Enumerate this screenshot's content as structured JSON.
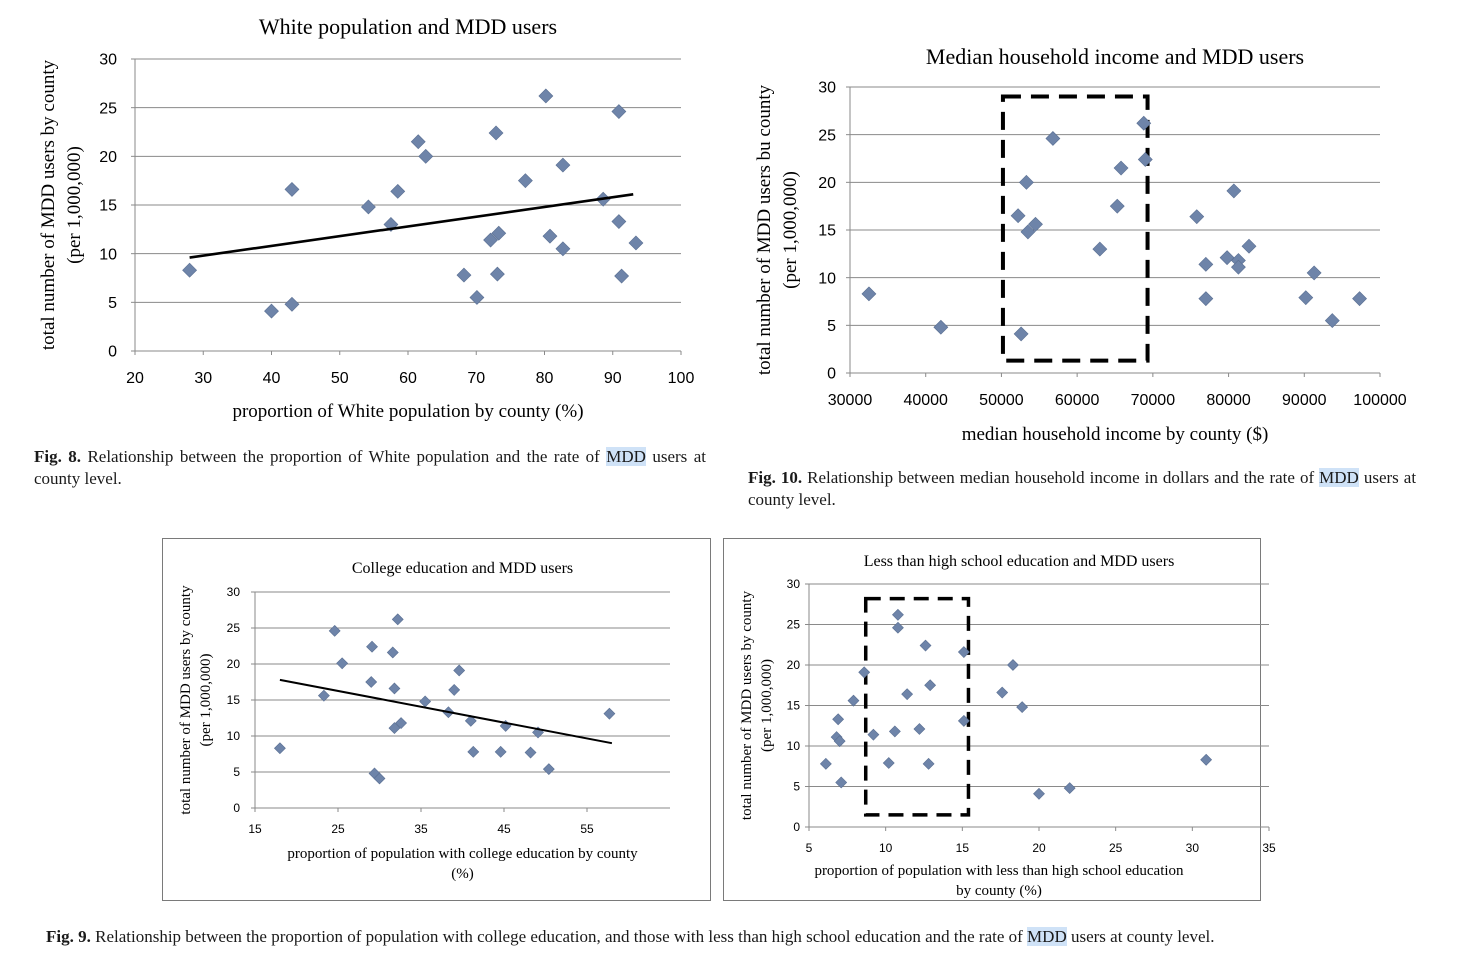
{
  "chart_data": [
    {
      "id": "fig8",
      "type": "scatter",
      "title": "White population and MDD users",
      "xlabel": "proportion of White population by county (%)",
      "ylabel": [
        "total number of MDD users by county",
        "(per 1,000,000)"
      ],
      "xlim": [
        20,
        100
      ],
      "ylim": [
        0,
        30
      ],
      "xticks": [
        20,
        30,
        40,
        50,
        60,
        70,
        80,
        90,
        100
      ],
      "yticks": [
        0,
        5,
        10,
        15,
        20,
        25,
        30
      ],
      "grid": "horizontal",
      "marker_color": "#6e84a9",
      "trendline": {
        "x": [
          28,
          93
        ],
        "y": [
          9.6,
          16.1
        ]
      },
      "points": [
        [
          28,
          8.3
        ],
        [
          40,
          4.1
        ],
        [
          43,
          16.6
        ],
        [
          43,
          4.8
        ],
        [
          54.2,
          14.8
        ],
        [
          57.5,
          13.0
        ],
        [
          58.5,
          16.4
        ],
        [
          61.5,
          21.5
        ],
        [
          62.6,
          20.0
        ],
        [
          68.2,
          7.8
        ],
        [
          70.1,
          5.5
        ],
        [
          72.1,
          11.4
        ],
        [
          72.9,
          22.4
        ],
        [
          73.1,
          7.9
        ],
        [
          73.3,
          12.1
        ],
        [
          77.2,
          17.5
        ],
        [
          80.2,
          26.2
        ],
        [
          80.8,
          11.8
        ],
        [
          82.7,
          19.1
        ],
        [
          82.7,
          10.5
        ],
        [
          88.6,
          15.6
        ],
        [
          90.9,
          24.6
        ],
        [
          90.9,
          13.3
        ],
        [
          91.3,
          7.7
        ],
        [
          93.4,
          11.1
        ]
      ]
    },
    {
      "id": "fig10",
      "type": "scatter",
      "title": "Median household income and MDD users",
      "xlabel": "median household income by county ($)",
      "ylabel": [
        "total number of MDD users bu county",
        "(per 1,000,000)"
      ],
      "xlim": [
        30000,
        100000
      ],
      "ylim": [
        0,
        30
      ],
      "xticks": [
        30000,
        40000,
        50000,
        60000,
        70000,
        80000,
        90000,
        100000
      ],
      "yticks": [
        0,
        5,
        10,
        15,
        20,
        25,
        30
      ],
      "grid": "horizontal",
      "marker_color": "#6e84a9",
      "highlight_box": {
        "x": [
          50200,
          69300
        ],
        "y": [
          1.3,
          29
        ]
      },
      "points": [
        [
          32500,
          8.3
        ],
        [
          42000,
          4.8
        ],
        [
          52200,
          16.5
        ],
        [
          52600,
          4.1
        ],
        [
          53300,
          20.0
        ],
        [
          53500,
          14.8
        ],
        [
          54500,
          15.6
        ],
        [
          56800,
          24.6
        ],
        [
          63000,
          13.0
        ],
        [
          65300,
          17.5
        ],
        [
          65800,
          21.5
        ],
        [
          68800,
          26.2
        ],
        [
          69000,
          22.4
        ],
        [
          75800,
          16.4
        ],
        [
          77000,
          11.4
        ],
        [
          77000,
          7.8
        ],
        [
          79800,
          12.1
        ],
        [
          80700,
          19.1
        ],
        [
          81300,
          11.8
        ],
        [
          81300,
          11.1
        ],
        [
          82700,
          13.3
        ],
        [
          90200,
          7.9
        ],
        [
          91300,
          10.5
        ],
        [
          93700,
          5.5
        ],
        [
          97300,
          7.8
        ]
      ]
    },
    {
      "id": "fig9a",
      "type": "scatter",
      "title": "College education and MDD users",
      "xlabel": [
        "proportion of population with college education by county",
        "(%)"
      ],
      "ylabel": [
        "total number of MDD users by county",
        "(per 1,000,000)"
      ],
      "xlim": [
        15,
        65
      ],
      "ylim": [
        0,
        30
      ],
      "xticks": [
        15,
        25,
        35,
        45,
        55
      ],
      "yticks": [
        0,
        5,
        10,
        15,
        20,
        25,
        30
      ],
      "grid": "horizontal",
      "marker_color": "#6e84a9",
      "trendline": {
        "x": [
          18,
          58
        ],
        "y": [
          17.8,
          9.0
        ]
      },
      "points": [
        [
          18,
          8.3
        ],
        [
          23.3,
          15.6
        ],
        [
          24.6,
          24.6
        ],
        [
          25.5,
          20.1
        ],
        [
          29,
          17.5
        ],
        [
          29.1,
          22.4
        ],
        [
          29.4,
          4.8
        ],
        [
          30,
          4.1
        ],
        [
          31.6,
          21.6
        ],
        [
          31.8,
          16.6
        ],
        [
          31.8,
          11.1
        ],
        [
          32.2,
          26.2
        ],
        [
          32.6,
          11.8
        ],
        [
          35.5,
          14.8
        ],
        [
          38.3,
          13.3
        ],
        [
          39,
          16.4
        ],
        [
          39.6,
          19.1
        ],
        [
          41,
          12.1
        ],
        [
          41.3,
          7.8
        ],
        [
          44.6,
          7.8
        ],
        [
          45.2,
          11.4
        ],
        [
          48.2,
          7.7
        ],
        [
          49.1,
          10.5
        ],
        [
          50.4,
          5.4
        ],
        [
          57.7,
          13.1
        ]
      ]
    },
    {
      "id": "fig9b",
      "type": "scatter",
      "title": "Less than high school education and MDD users",
      "xlabel": [
        "proportion of population with less than high school education",
        "by county  (%)"
      ],
      "ylabel": [
        "total number of MDD users by county",
        "(per 1,000,000)"
      ],
      "xlim": [
        5,
        35
      ],
      "ylim": [
        0,
        30
      ],
      "xticks": [
        5,
        10,
        15,
        20,
        25,
        30,
        35
      ],
      "yticks": [
        0,
        5,
        10,
        15,
        20,
        25,
        30
      ],
      "grid": "horizontal",
      "marker_color": "#6e84a9",
      "highlight_box": {
        "x": [
          8.7,
          15.4
        ],
        "y": [
          1.5,
          28.2
        ]
      },
      "points": [
        [
          6.1,
          7.8
        ],
        [
          6.8,
          11.1
        ],
        [
          6.9,
          13.3
        ],
        [
          7,
          10.6
        ],
        [
          7.1,
          5.5
        ],
        [
          7.9,
          15.6
        ],
        [
          8.6,
          19.1
        ],
        [
          9.2,
          11.4
        ],
        [
          10.2,
          7.9
        ],
        [
          10.6,
          11.8
        ],
        [
          10.8,
          26.2
        ],
        [
          10.8,
          24.6
        ],
        [
          11.4,
          16.4
        ],
        [
          12.2,
          12.1
        ],
        [
          12.6,
          22.4
        ],
        [
          12.8,
          7.8
        ],
        [
          12.9,
          17.5
        ],
        [
          15.1,
          21.6
        ],
        [
          15.1,
          13.1
        ],
        [
          17.6,
          16.6
        ],
        [
          18.3,
          20.0
        ],
        [
          18.9,
          14.8
        ],
        [
          20,
          4.1
        ],
        [
          22,
          4.8
        ],
        [
          30.9,
          8.3
        ]
      ]
    }
  ],
  "captions": {
    "fig8": {
      "label": "Fig. 8.",
      "text_before": "Relationship between the proportion of White population and the rate of",
      "highlight": "MDD",
      "text_after": "users at county level."
    },
    "fig10": {
      "label": "Fig. 10.",
      "text_before": "Relationship between median household income in dollars and the rate of",
      "highlight": "MDD",
      "text_after": "users at county level."
    },
    "fig9": {
      "label": "Fig. 9.",
      "text_before": "Relationship between the proportion of population with college education, and those with less than high school education and the rate of",
      "highlight": "MDD",
      "text_after": "users at county level."
    }
  }
}
